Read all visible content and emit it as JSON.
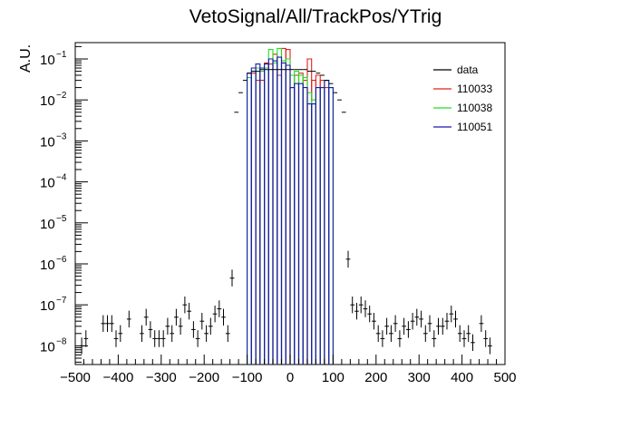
{
  "chart_data": {
    "type": "step-histogram",
    "title": "VetoSignal/All/TrackPos/YTrig",
    "xlabel": "",
    "ylabel": "A.U.",
    "xlim": [
      -500,
      500
    ],
    "ylim": [
      3.5e-09,
      0.25
    ],
    "yscale": "log",
    "grid": false,
    "legend_position": "top-right",
    "x_ticks": [
      -500,
      -400,
      -300,
      -200,
      -100,
      0,
      100,
      200,
      300,
      400,
      500
    ],
    "y_ticks": [
      {
        "base": "10",
        "exp": "−8",
        "value": 1e-08
      },
      {
        "base": "10",
        "exp": "−7",
        "value": 1e-07
      },
      {
        "base": "10",
        "exp": "−6",
        "value": 1e-06
      },
      {
        "base": "10",
        "exp": "−5",
        "value": 1e-05
      },
      {
        "base": "10",
        "exp": "−4",
        "value": 0.0001
      },
      {
        "base": "10",
        "exp": "−3",
        "value": 0.001
      },
      {
        "base": "10",
        "exp": "−2",
        "value": 0.01
      },
      {
        "base": "10",
        "exp": "−1",
        "value": 0.1
      }
    ],
    "bin_width": 10,
    "series": [
      {
        "name": "data",
        "color": "#000000",
        "style": "errorbar",
        "points": [
          [
            -485,
            1e-08
          ],
          [
            -475,
            1.5e-08
          ],
          [
            -435,
            3.5e-08
          ],
          [
            -425,
            3.5e-08
          ],
          [
            -415,
            3.5e-08
          ],
          [
            -405,
            1.5e-08
          ],
          [
            -395,
            2e-08
          ],
          [
            -375,
            4.5e-08
          ],
          [
            -345,
            2e-08
          ],
          [
            -335,
            5e-08
          ],
          [
            -325,
            2.5e-08
          ],
          [
            -315,
            1.5e-08
          ],
          [
            -305,
            1.5e-08
          ],
          [
            -295,
            1.5e-08
          ],
          [
            -285,
            3e-08
          ],
          [
            -275,
            2e-08
          ],
          [
            -265,
            5e-08
          ],
          [
            -255,
            3e-08
          ],
          [
            -245,
            1e-07
          ],
          [
            -235,
            7e-08
          ],
          [
            -225,
            2.5e-08
          ],
          [
            -215,
            1.5e-08
          ],
          [
            -205,
            4e-08
          ],
          [
            -195,
            2e-08
          ],
          [
            -185,
            3e-08
          ],
          [
            -175,
            6e-08
          ],
          [
            -165,
            8e-08
          ],
          [
            -155,
            5e-08
          ],
          [
            -145,
            2e-08
          ],
          [
            -135,
            4.5e-07
          ],
          [
            -125,
            0.005
          ],
          [
            -115,
            0.015
          ],
          [
            -105,
            0.03
          ],
          [
            -95,
            0.045
          ],
          [
            -85,
            0.05
          ],
          [
            -75,
            0.05
          ],
          [
            -65,
            0.055
          ],
          [
            -55,
            0.055
          ],
          [
            -45,
            0.055
          ],
          [
            -35,
            0.055
          ],
          [
            -25,
            0.055
          ],
          [
            -15,
            0.055
          ],
          [
            -5,
            0.055
          ],
          [
            5,
            0.055
          ],
          [
            15,
            0.055
          ],
          [
            25,
            0.055
          ],
          [
            35,
            0.055
          ],
          [
            45,
            0.05
          ],
          [
            55,
            0.05
          ],
          [
            65,
            0.045
          ],
          [
            75,
            0.04
          ],
          [
            85,
            0.03
          ],
          [
            95,
            0.025
          ],
          [
            105,
            0.015
          ],
          [
            115,
            0.01
          ],
          [
            125,
            0.005
          ],
          [
            135,
            1.3e-06
          ],
          [
            145,
            1e-07
          ],
          [
            155,
            7e-08
          ],
          [
            165,
            1e-07
          ],
          [
            175,
            8e-08
          ],
          [
            185,
            6e-08
          ],
          [
            195,
            4e-08
          ],
          [
            205,
            2e-08
          ],
          [
            215,
            1.5e-08
          ],
          [
            225,
            3e-08
          ],
          [
            235,
            2e-08
          ],
          [
            245,
            3.5e-08
          ],
          [
            255,
            1.5e-08
          ],
          [
            265,
            3e-08
          ],
          [
            275,
            2.5e-08
          ],
          [
            285,
            4e-08
          ],
          [
            295,
            5e-08
          ],
          [
            305,
            4.5e-08
          ],
          [
            315,
            2e-08
          ],
          [
            325,
            3.5e-08
          ],
          [
            335,
            1.5e-08
          ],
          [
            345,
            3e-08
          ],
          [
            355,
            3e-08
          ],
          [
            365,
            4e-08
          ],
          [
            375,
            6e-08
          ],
          [
            385,
            4.5e-08
          ],
          [
            395,
            2e-08
          ],
          [
            405,
            1.5e-08
          ],
          [
            415,
            2e-08
          ],
          [
            425,
            1.2e-08
          ],
          [
            445,
            3.5e-08
          ],
          [
            455,
            1.5e-08
          ],
          [
            465,
            1e-08
          ]
        ]
      },
      {
        "name": "110033",
        "color": "#e02020",
        "style": "step",
        "bins": [
          [
            -90,
            0.045
          ],
          [
            -80,
            0.03
          ],
          [
            -70,
            0.03
          ],
          [
            -60,
            0.08
          ],
          [
            -50,
            0.075
          ],
          [
            -40,
            0.13
          ],
          [
            -30,
            0.04
          ],
          [
            -20,
            0.18
          ],
          [
            -10,
            0.17
          ],
          [
            0,
            0.02
          ],
          [
            10,
            0.04
          ],
          [
            20,
            0.045
          ],
          [
            30,
            0.03
          ],
          [
            40,
            0.1
          ],
          [
            50,
            0.03
          ],
          [
            60,
            0.04
          ],
          [
            70,
            0.03
          ],
          [
            80,
            0.02
          ]
        ]
      },
      {
        "name": "110038",
        "color": "#22dd22",
        "style": "step",
        "bins": [
          [
            -100,
            0.035
          ],
          [
            -90,
            0.05
          ],
          [
            -80,
            0.06
          ],
          [
            -70,
            0.05
          ],
          [
            -60,
            0.06
          ],
          [
            -50,
            0.17
          ],
          [
            -40,
            0.08
          ],
          [
            -30,
            0.18
          ],
          [
            -20,
            0.09
          ],
          [
            -10,
            0.1
          ],
          [
            0,
            0.04
          ],
          [
            10,
            0.05
          ],
          [
            20,
            0.04
          ],
          [
            30,
            0.035
          ],
          [
            40,
            0.015
          ],
          [
            50,
            0.01
          ],
          [
            60,
            0.02
          ],
          [
            70,
            0.02
          ],
          [
            80,
            0.03
          ],
          [
            90,
            0.02
          ]
        ]
      },
      {
        "name": "110051",
        "color": "#1a1aaa",
        "style": "step",
        "bins": [
          [
            -100,
            0.045
          ],
          [
            -90,
            0.06
          ],
          [
            -80,
            0.075
          ],
          [
            -70,
            0.06
          ],
          [
            -60,
            0.075
          ],
          [
            -50,
            0.1
          ],
          [
            -40,
            0.09
          ],
          [
            -30,
            0.11
          ],
          [
            -20,
            0.08
          ],
          [
            -10,
            0.07
          ],
          [
            0,
            0.02
          ],
          [
            10,
            0.025
          ],
          [
            20,
            0.025
          ],
          [
            30,
            0.02
          ],
          [
            40,
            0.008
          ],
          [
            50,
            0.008
          ],
          [
            60,
            0.02
          ],
          [
            70,
            0.02
          ],
          [
            80,
            0.03
          ],
          [
            90,
            0.02
          ]
        ]
      }
    ]
  }
}
